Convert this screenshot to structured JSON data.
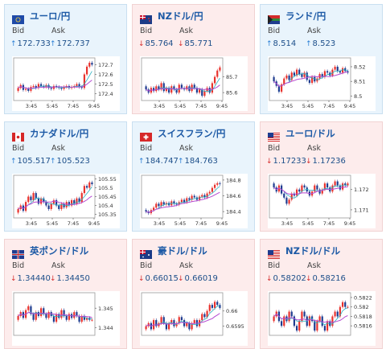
{
  "labels": {
    "bid": "Bid",
    "ask": "Ask"
  },
  "colors": {
    "up": "#2a7fd6",
    "down": "#d63030",
    "title": "#1d5aa6",
    "candle_up": "#e8322d",
    "candle_down": "#1f3c8f",
    "ma": "#b54ad1"
  },
  "cards": [
    {
      "title": "ユーロ/円",
      "trend": "up",
      "flag": "eu",
      "bid_arrow": "↑",
      "ask_arrow": "↑",
      "bid": "172.733",
      "ask": "172.737",
      "chart_data": {
        "type": "candlestick",
        "x_ticks": [
          "3:45",
          "5:45",
          "7:45",
          "9:45"
        ],
        "y_ticks": [
          "172.7",
          "172.6",
          "172.5",
          "172.4"
        ],
        "y_tick_values": [
          172.7,
          172.6,
          172.5,
          172.4
        ],
        "ylim": [
          172.33,
          172.77
        ],
        "close": [
          172.46,
          172.49,
          172.44,
          172.45,
          172.43,
          172.47,
          172.48,
          172.46,
          172.5,
          172.48,
          172.47,
          172.49,
          172.46,
          172.45,
          172.48,
          172.47,
          172.46,
          172.45,
          172.47,
          172.48,
          172.46,
          172.47,
          172.48,
          172.5,
          172.47,
          172.46,
          172.6,
          172.68,
          172.72,
          172.7
        ]
      }
    },
    {
      "title": "NZドル/円",
      "trend": "down",
      "flag": "nz",
      "bid_arrow": "↓",
      "ask_arrow": "↓",
      "bid": "85.764",
      "ask": "85.771",
      "chart_data": {
        "type": "candlestick",
        "x_ticks": [
          "3:45",
          "5:45",
          "7:45",
          "9:45"
        ],
        "y_ticks": [
          "85.7",
          "85.6"
        ],
        "y_tick_values": [
          85.7,
          85.6
        ],
        "ylim": [
          85.55,
          85.82
        ],
        "close": [
          85.62,
          85.6,
          85.63,
          85.61,
          85.64,
          85.62,
          85.66,
          85.61,
          85.63,
          85.6,
          85.64,
          85.62,
          85.6,
          85.65,
          85.63,
          85.62,
          85.64,
          85.61,
          85.65,
          85.63,
          85.6,
          85.62,
          85.58,
          85.61,
          85.63,
          85.6,
          85.66,
          85.7,
          85.74,
          85.76
        ]
      }
    },
    {
      "title": "ランド/円",
      "trend": "up",
      "flag": "za",
      "bid_arrow": "↑",
      "ask_arrow": "↑",
      "bid": "8.514",
      "ask": "8.523",
      "chart_data": {
        "type": "candlestick",
        "x_ticks": [
          "3:45",
          "5:45",
          "7:45",
          "9:45"
        ],
        "y_ticks": [
          "8.52",
          "8.51",
          "8.5"
        ],
        "y_tick_values": [
          8.52,
          8.51,
          8.5
        ],
        "ylim": [
          8.497,
          8.526
        ],
        "close": [
          8.51,
          8.507,
          8.503,
          8.508,
          8.512,
          8.514,
          8.511,
          8.516,
          8.514,
          8.518,
          8.515,
          8.513,
          8.516,
          8.511,
          8.509,
          8.513,
          8.51,
          8.512,
          8.515,
          8.513,
          8.517,
          8.516,
          8.514,
          8.518,
          8.52,
          8.517,
          8.516,
          8.519,
          8.517,
          8.516
        ]
      }
    },
    {
      "title": "カナダドル/円",
      "trend": "up",
      "flag": "ca",
      "bid_arrow": "↑",
      "ask_arrow": "↑",
      "bid": "105.517",
      "ask": "105.523",
      "chart_data": {
        "type": "candlestick",
        "x_ticks": [
          "3:45",
          "5:45",
          "7:45",
          "9:45"
        ],
        "y_ticks": [
          "105.55",
          "105.5",
          "105.45",
          "105.4",
          "105.35"
        ],
        "y_tick_values": [
          105.55,
          105.5,
          105.45,
          105.4,
          105.35
        ],
        "ylim": [
          105.33,
          105.57
        ],
        "close": [
          105.38,
          105.4,
          105.37,
          105.42,
          105.45,
          105.43,
          105.47,
          105.44,
          105.41,
          105.44,
          105.42,
          105.4,
          105.38,
          105.41,
          105.43,
          105.4,
          105.38,
          105.41,
          105.39,
          105.42,
          105.4,
          105.43,
          105.41,
          105.44,
          105.42,
          105.47,
          105.51,
          105.5,
          105.53,
          105.52
        ]
      }
    },
    {
      "title": "スイスフラン/円",
      "trend": "up",
      "flag": "ch",
      "bid_arrow": "↑",
      "ask_arrow": "↑",
      "bid": "184.747",
      "ask": "184.763",
      "chart_data": {
        "type": "candlestick",
        "x_ticks": [
          "3:45",
          "5:45",
          "7:45",
          "9:45"
        ],
        "y_ticks": [
          "184.8",
          "184.6",
          "184.4"
        ],
        "y_tick_values": [
          184.8,
          184.6,
          184.4
        ],
        "ylim": [
          184.32,
          184.86
        ],
        "close": [
          184.4,
          184.38,
          184.42,
          184.45,
          184.5,
          184.47,
          184.52,
          184.49,
          184.51,
          184.48,
          184.53,
          184.5,
          184.49,
          184.52,
          184.55,
          184.52,
          184.57,
          184.55,
          184.6,
          184.58,
          184.55,
          184.59,
          184.61,
          184.58,
          184.63,
          184.65,
          184.7,
          184.74,
          184.76,
          184.75
        ]
      }
    },
    {
      "title": "ユーロ/ドル",
      "trend": "down",
      "flag": "us",
      "bid_arrow": "↓",
      "ask_arrow": "↓",
      "bid": "1.17233",
      "ask": "1.17236",
      "chart_data": {
        "type": "candlestick",
        "x_ticks": [
          "3:45",
          "5:45",
          "7:45",
          "9:45"
        ],
        "y_ticks": [
          "1.172",
          "1.171"
        ],
        "y_tick_values": [
          1.172,
          1.171
        ],
        "ylim": [
          1.1706,
          1.1727
        ],
        "close": [
          1.1721,
          1.1719,
          1.1722,
          1.1718,
          1.1716,
          1.1713,
          1.1715,
          1.1718,
          1.1717,
          1.172,
          1.1719,
          1.1722,
          1.1721,
          1.1719,
          1.1717,
          1.1719,
          1.1722,
          1.172,
          1.1718,
          1.172,
          1.1723,
          1.1721,
          1.1719,
          1.1722,
          1.1724,
          1.1722,
          1.172,
          1.1723,
          1.1722,
          1.1723
        ]
      }
    },
    {
      "title": "英ポンド/ドル",
      "trend": "down",
      "flag": "gb",
      "bid_arrow": "↓",
      "ask_arrow": "↓",
      "bid": "1.34440",
      "ask": "1.34450",
      "chart_data": {
        "type": "candlestick",
        "x_ticks": [],
        "y_ticks": [
          "1.345",
          "1.344"
        ],
        "y_tick_values": [
          1.345,
          1.344
        ],
        "ylim": [
          1.3436,
          1.3458
        ],
        "close": [
          1.3446,
          1.3448,
          1.3445,
          1.3449,
          1.3451,
          1.3447,
          1.3444,
          1.3448,
          1.3446,
          1.345,
          1.3447,
          1.3445,
          1.3448,
          1.3446,
          1.3443,
          1.3447,
          1.3445,
          1.3449,
          1.3446,
          1.3444,
          1.3447,
          1.3445,
          1.3448,
          1.3446,
          1.3443,
          1.3446,
          1.3444,
          1.3445,
          1.3444,
          1.3444
        ]
      }
    },
    {
      "title": "豪ドル/ドル",
      "trend": "down",
      "flag": "au",
      "bid_arrow": "↓",
      "ask_arrow": "↓",
      "bid": "0.66015",
      "ask": "0.66019",
      "chart_data": {
        "type": "candlestick",
        "x_ticks": [],
        "y_ticks": [
          "0.66",
          "0.6595"
        ],
        "y_tick_values": [
          0.66,
          0.6595
        ],
        "ylim": [
          0.6592,
          0.6606
        ],
        "close": [
          0.6595,
          0.6596,
          0.6594,
          0.6597,
          0.6595,
          0.6596,
          0.6598,
          0.6596,
          0.6594,
          0.6596,
          0.6597,
          0.6595,
          0.6596,
          0.6598,
          0.6597,
          0.6595,
          0.6596,
          0.6594,
          0.6596,
          0.6597,
          0.6595,
          0.6597,
          0.6599,
          0.6598,
          0.66,
          0.6602,
          0.6601,
          0.6603,
          0.6602,
          0.6601
        ]
      }
    },
    {
      "title": "NZドル/ドル",
      "trend": "down",
      "flag": "us",
      "bid_arrow": "↓",
      "ask_arrow": "↓",
      "bid": "0.58202",
      "ask": "0.58216",
      "chart_data": {
        "type": "candlestick",
        "x_ticks": [],
        "y_ticks": [
          "0.5822",
          "0.582",
          "0.5818",
          "0.5816"
        ],
        "y_tick_values": [
          0.5822,
          0.582,
          0.5818,
          0.5816
        ],
        "ylim": [
          0.5814,
          0.5823
        ],
        "close": [
          0.5818,
          0.5819,
          0.5817,
          0.5816,
          0.5818,
          0.5817,
          0.5819,
          0.5818,
          0.5816,
          0.5815,
          0.5817,
          0.5819,
          0.5818,
          0.5816,
          0.5818,
          0.5817,
          0.5815,
          0.5817,
          0.5818,
          0.5816,
          0.5815,
          0.5817,
          0.5816,
          0.5818,
          0.5819,
          0.5818,
          0.582,
          0.5821,
          0.582,
          0.582
        ]
      }
    }
  ]
}
